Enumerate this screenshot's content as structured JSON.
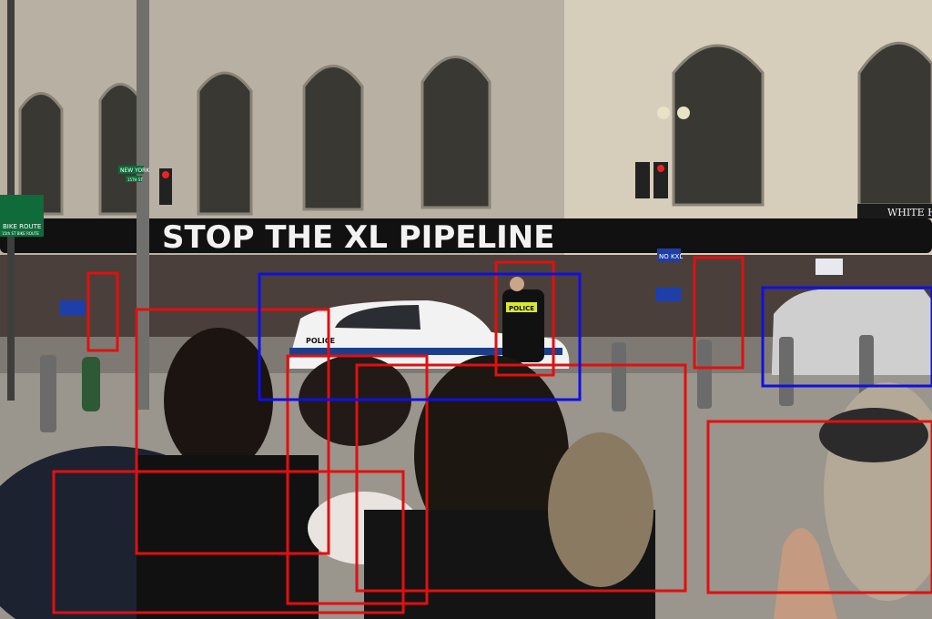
{
  "signs": {
    "pipeline_banner": "STOP THE XL PIPELINE",
    "bike_route": "BIKE ROUTE",
    "bike_route_sub": "15th ST BIKE ROUTE",
    "street_sign": "NEW YORK",
    "street_sign_2": "15TH ST",
    "police_car": "POLICE",
    "officer_vest": "POLICE",
    "building": "WHITE HO",
    "protest_sign": "NO KXL"
  },
  "colors": {
    "person_box": "#e01010",
    "car_box": "#1010e0"
  },
  "annotations": {
    "people": 9,
    "cars": 2
  }
}
